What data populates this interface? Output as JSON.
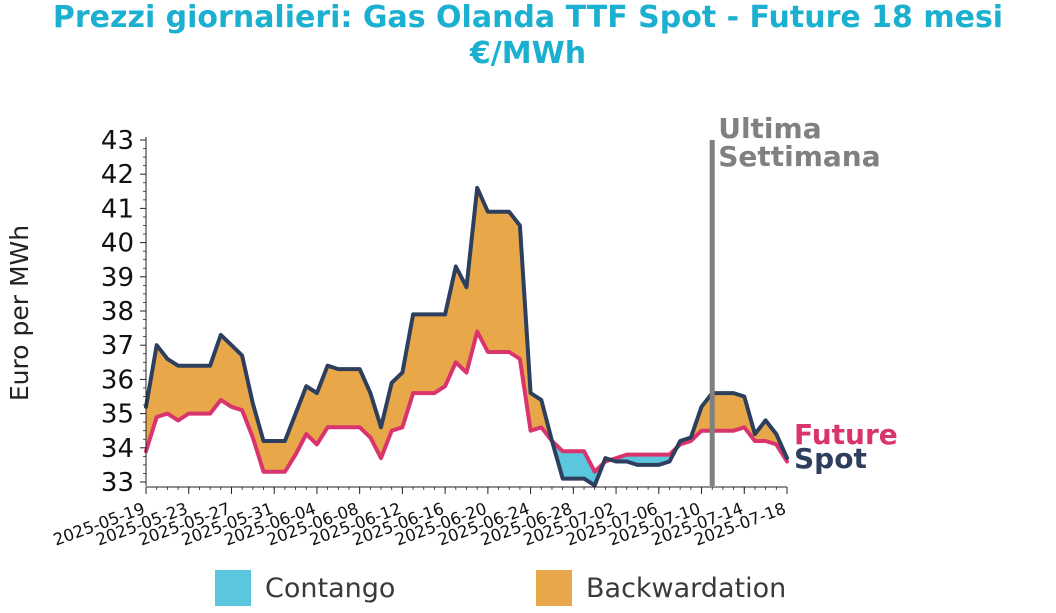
{
  "title": {
    "line1": "Prezzi giornalieri: Gas Olanda TTF Spot - Future 18 mesi",
    "line2": "€/MWh",
    "color": "#1bb0cf"
  },
  "legend": {
    "contango": {
      "label": "Contango",
      "color": "#5bc7df"
    },
    "backwardation": {
      "label": "Backwardation",
      "color": "#e8a84a"
    }
  },
  "chart_data": {
    "type": "area",
    "ylabel": "Euro per MWh",
    "ylim": [
      33,
      43
    ],
    "yticks": [
      33,
      34,
      35,
      36,
      37,
      38,
      39,
      40,
      41,
      42,
      43
    ],
    "xlim": [
      "2025-05-19",
      "2025-07-18"
    ],
    "xticks": [
      "2025-05-19",
      "2025-05-23",
      "2025-05-27",
      "2025-05-31",
      "2025-06-04",
      "2025-06-08",
      "2025-06-12",
      "2025-06-16",
      "2025-06-20",
      "2025-06-24",
      "2025-06-28",
      "2025-07-02",
      "2025-07-06",
      "2025-07-10",
      "2025-07-14",
      "2025-07-18"
    ],
    "x": [
      "2025-05-19",
      "2025-05-20",
      "2025-05-21",
      "2025-05-22",
      "2025-05-23",
      "2025-05-24",
      "2025-05-25",
      "2025-05-26",
      "2025-05-27",
      "2025-05-28",
      "2025-05-29",
      "2025-05-30",
      "2025-05-31",
      "2025-06-01",
      "2025-06-02",
      "2025-06-03",
      "2025-06-04",
      "2025-06-05",
      "2025-06-06",
      "2025-06-07",
      "2025-06-08",
      "2025-06-09",
      "2025-06-10",
      "2025-06-11",
      "2025-06-12",
      "2025-06-13",
      "2025-06-14",
      "2025-06-15",
      "2025-06-16",
      "2025-06-17",
      "2025-06-18",
      "2025-06-19",
      "2025-06-20",
      "2025-06-21",
      "2025-06-22",
      "2025-06-23",
      "2025-06-24",
      "2025-06-25",
      "2025-06-26",
      "2025-06-27",
      "2025-06-28",
      "2025-06-29",
      "2025-06-30",
      "2025-07-01",
      "2025-07-02",
      "2025-07-03",
      "2025-07-04",
      "2025-07-05",
      "2025-07-06",
      "2025-07-07",
      "2025-07-08",
      "2025-07-09",
      "2025-07-10",
      "2025-07-11",
      "2025-07-12",
      "2025-07-13",
      "2025-07-14",
      "2025-07-15",
      "2025-07-16",
      "2025-07-17",
      "2025-07-18"
    ],
    "series": [
      {
        "name": "Spot",
        "color": "#2e3f5e",
        "values": [
          35.2,
          37.0,
          36.6,
          36.4,
          36.4,
          36.4,
          36.4,
          37.3,
          37.0,
          36.7,
          35.3,
          34.2,
          34.2,
          34.2,
          35.0,
          35.8,
          35.6,
          36.4,
          36.3,
          36.3,
          36.3,
          35.6,
          34.6,
          35.9,
          36.2,
          37.9,
          37.9,
          37.9,
          37.9,
          39.3,
          38.7,
          41.6,
          40.9,
          40.9,
          40.9,
          40.5,
          35.6,
          35.4,
          34.2,
          33.1,
          33.1,
          33.1,
          32.9,
          33.7,
          33.6,
          33.6,
          33.5,
          33.5,
          33.5,
          33.6,
          34.2,
          34.3,
          35.2,
          35.6,
          35.6,
          35.6,
          35.5,
          34.4,
          34.8,
          34.4,
          33.7
        ]
      },
      {
        "name": "Future",
        "color": "#d9346e",
        "values": [
          33.9,
          34.9,
          35.0,
          34.8,
          35.0,
          35.0,
          35.0,
          35.4,
          35.2,
          35.1,
          34.3,
          33.3,
          33.3,
          33.3,
          33.8,
          34.4,
          34.1,
          34.6,
          34.6,
          34.6,
          34.6,
          34.3,
          33.7,
          34.5,
          34.6,
          35.6,
          35.6,
          35.6,
          35.8,
          36.5,
          36.2,
          37.4,
          36.8,
          36.8,
          36.8,
          36.6,
          34.5,
          34.6,
          34.2,
          33.9,
          33.9,
          33.9,
          33.3,
          33.6,
          33.7,
          33.8,
          33.8,
          33.8,
          33.8,
          33.8,
          34.1,
          34.2,
          34.5,
          34.5,
          34.5,
          34.5,
          34.6,
          34.2,
          34.2,
          34.1,
          33.6
        ]
      }
    ],
    "annotation": {
      "text_line1": "Ultima",
      "text_line2": "Settimana",
      "x": "2025-07-11",
      "color": "#808080"
    },
    "series_labels": {
      "future": "Future",
      "spot": "Spot"
    },
    "grid": false,
    "legend_position": "bottom"
  }
}
